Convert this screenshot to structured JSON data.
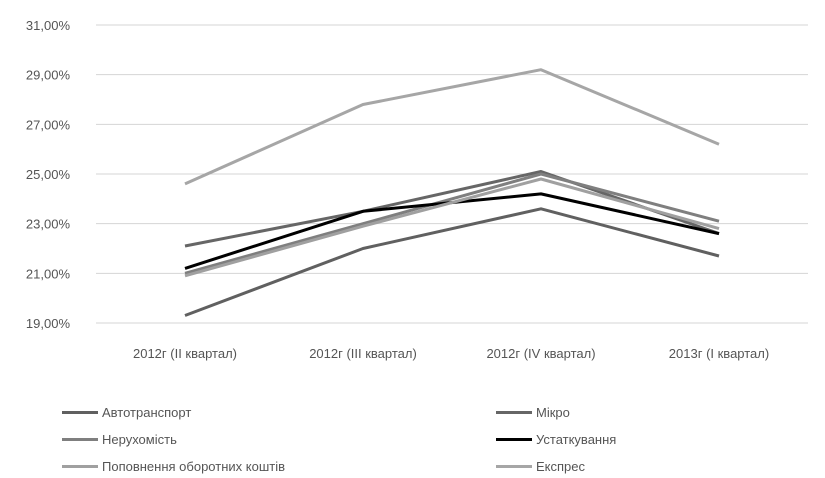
{
  "chart_data": {
    "type": "line",
    "categories": [
      "2012г (II квартал)",
      "2012г (III квартал)",
      "2012г (IV квартал)",
      "2013г (I квартал)"
    ],
    "ylim": [
      19,
      31
    ],
    "yticks": [
      "19,00%",
      "21,00%",
      "23,00%",
      "25,00%",
      "27,00%",
      "29,00%",
      "31,00%"
    ],
    "ytick_values": [
      19,
      21,
      23,
      25,
      27,
      29,
      31
    ],
    "grid": true,
    "legend_position": "bottom",
    "series": [
      {
        "name": "Автотранспорт",
        "color": "#606060",
        "values": [
          19.3,
          22.0,
          23.6,
          21.7
        ]
      },
      {
        "name": "Мікро",
        "color": "#666666",
        "values": [
          22.1,
          23.5,
          25.1,
          22.6
        ]
      },
      {
        "name": "Нерухомість",
        "color": "#7f7f7f",
        "values": [
          21.0,
          23.0,
          25.0,
          23.1
        ]
      },
      {
        "name": "Устаткування",
        "color": "#000000",
        "values": [
          21.2,
          23.5,
          24.2,
          22.6
        ]
      },
      {
        "name": "Поповнення оборотних коштів",
        "color": "#a0a0a0",
        "values": [
          20.9,
          22.9,
          24.8,
          22.8
        ]
      },
      {
        "name": "Експрес",
        "color": "#a6a6a6",
        "values": [
          24.6,
          27.8,
          29.2,
          26.2
        ]
      }
    ]
  }
}
